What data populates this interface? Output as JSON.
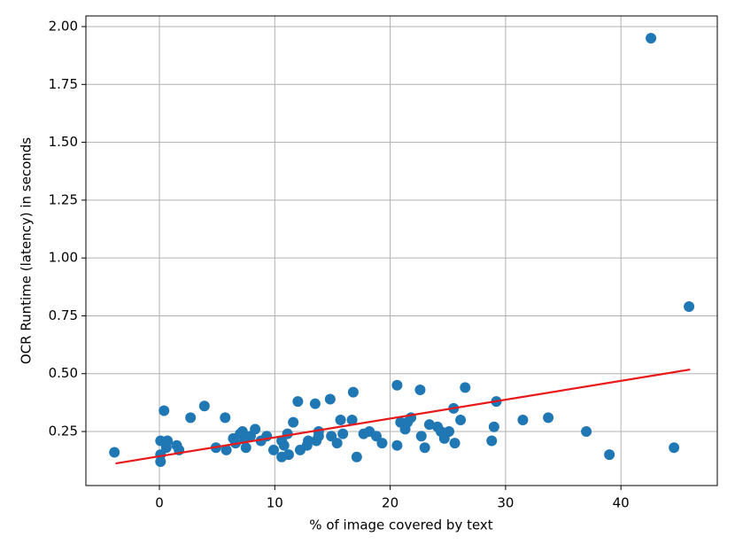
{
  "chart_data": {
    "type": "scatter",
    "xlabel": "% of image covered by text",
    "ylabel": "OCR Runtime (latency) in seconds",
    "xlim": [
      -6.37,
      48.35
    ],
    "ylim": [
      0.0165,
      2.046
    ],
    "xticks": [
      0,
      10,
      20,
      30,
      40
    ],
    "yticks": [
      0.25,
      {
        "value": 0.5,
        "label": "0.50"
      },
      0.75,
      {
        "value": 1,
        "label": "1.00"
      },
      1.25,
      {
        "value": 1.5,
        "label": "1.50"
      },
      1.75,
      {
        "value": 2,
        "label": "2.00"
      }
    ],
    "grid": true,
    "series": [
      {
        "type": "scatter",
        "color": "#1f77b4",
        "x": [
          -3.9,
          0.1,
          0.1,
          0.1,
          0.4,
          0.7,
          0.6,
          1.5,
          1.7,
          2.7,
          3.9,
          4.9,
          5.7,
          5.8,
          6.4,
          6.6,
          7.0,
          7.2,
          7.4,
          7.5,
          7.9,
          8.3,
          8.8,
          9.3,
          9.9,
          10.6,
          10.6,
          10.8,
          11.1,
          11.2,
          11.6,
          12.0,
          12.2,
          12.9,
          12.8,
          13.5,
          13.6,
          13.8,
          13.8,
          14.8,
          14.9,
          15.4,
          15.7,
          15.9,
          16.7,
          16.8,
          17.1,
          17.7,
          18.2,
          18.8,
          19.3,
          20.6,
          20.6,
          20.9,
          21.3,
          21.5,
          21.8,
          22.6,
          22.7,
          23.0,
          23.4,
          24.1,
          24.4,
          24.7,
          25.1,
          25.5,
          25.6,
          26.1,
          26.5,
          28.8,
          29.0,
          29.2,
          31.5,
          33.7,
          37.0,
          39.0,
          42.6,
          44.6,
          45.9
        ],
        "values": [
          0.16,
          0.15,
          0.12,
          0.21,
          0.34,
          0.21,
          0.18,
          0.19,
          0.17,
          0.31,
          0.36,
          0.18,
          0.31,
          0.17,
          0.22,
          0.2,
          0.24,
          0.25,
          0.22,
          0.18,
          0.23,
          0.26,
          0.21,
          0.23,
          0.17,
          0.21,
          0.14,
          0.19,
          0.24,
          0.15,
          0.29,
          0.38,
          0.17,
          0.21,
          0.19,
          0.37,
          0.21,
          0.23,
          0.25,
          0.39,
          0.23,
          0.2,
          0.3,
          0.24,
          0.3,
          0.42,
          0.14,
          0.24,
          0.25,
          0.23,
          0.2,
          0.45,
          0.19,
          0.29,
          0.26,
          0.29,
          0.31,
          0.43,
          0.23,
          0.18,
          0.28,
          0.27,
          0.25,
          0.22,
          0.25,
          0.35,
          0.2,
          0.3,
          0.44,
          0.21,
          0.27,
          0.38,
          0.3,
          0.31,
          0.25,
          0.15,
          1.95,
          0.18,
          0.79
        ]
      },
      {
        "type": "line",
        "color": "#e8191a",
        "x": [
          -3.8,
          46
        ],
        "values": [
          0.112,
          0.518
        ]
      }
    ]
  }
}
